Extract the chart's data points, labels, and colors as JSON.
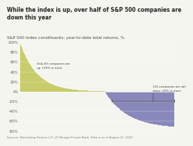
{
  "title": "While the index is up, over half of S&P 500 companies are\ndown this year",
  "subtitle": "S&P 500 Index constituents, year-to-date total returns, %",
  "sources": "Sources: Bloomberg Finance L.P., J.P. Morgan Private Bank. Data is as of August 11, 2020.",
  "n_companies": 500,
  "positive_color": "#c8cc6a",
  "negative_color": "#8888bb",
  "annotation_positive": "Only 83 companies are\nup +20% or more",
  "annotation_negative": "133 companies are still\ndown -20% or more",
  "yticks": [
    "100%",
    "80%",
    "60%",
    "40%",
    "20%",
    "0%",
    "-20%",
    "-40%",
    "-60%",
    "-80%"
  ],
  "ytick_vals": [
    100,
    80,
    60,
    40,
    20,
    0,
    -20,
    -40,
    -60,
    -80
  ],
  "ylim": [
    -85,
    105
  ],
  "background_color": "#f5f5f0",
  "title_fontsize": 5.5,
  "subtitle_fontsize": 4.2,
  "sources_fontsize": 3.0
}
